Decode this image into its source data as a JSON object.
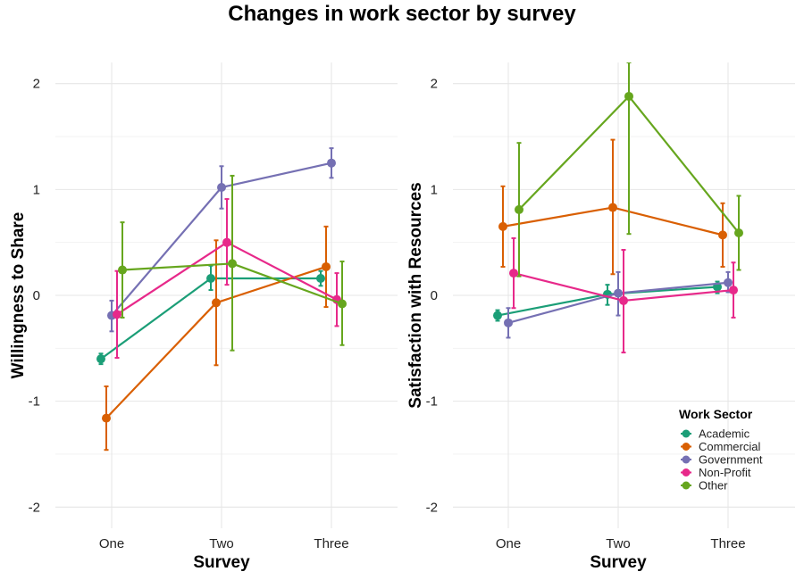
{
  "title": "Changes in work sector by survey",
  "chart_data": [
    {
      "type": "line",
      "error_bars": true,
      "categories": [
        "One",
        "Two",
        "Three"
      ],
      "xlabel": "Survey",
      "ylabel": "Willingness to Share",
      "ylim": [
        -2.2,
        2.2
      ],
      "yticks": [
        -2,
        -1,
        0,
        1,
        2
      ],
      "grid": true,
      "series": [
        {
          "name": "Academic",
          "color": "#1b9e77",
          "values": [
            -0.6,
            0.16,
            0.16
          ],
          "lower": [
            -0.65,
            0.05,
            0.09
          ],
          "upper": [
            -0.55,
            0.28,
            0.23
          ]
        },
        {
          "name": "Commercial",
          "color": "#d95f02",
          "values": [
            -1.16,
            -0.07,
            0.27
          ],
          "lower": [
            -1.46,
            -0.66,
            -0.11
          ],
          "upper": [
            -0.86,
            0.52,
            0.65
          ]
        },
        {
          "name": "Government",
          "color": "#7570b3",
          "values": [
            -0.19,
            1.02,
            1.25
          ],
          "lower": [
            -0.34,
            0.82,
            1.11
          ],
          "upper": [
            -0.05,
            1.22,
            1.39
          ]
        },
        {
          "name": "Non-Profit",
          "color": "#e7298a",
          "values": [
            -0.18,
            0.5,
            -0.04
          ],
          "lower": [
            -0.59,
            0.1,
            -0.29
          ],
          "upper": [
            0.23,
            0.91,
            0.21
          ]
        },
        {
          "name": "Other",
          "color": "#66a61e",
          "values": [
            0.24,
            0.3,
            -0.08
          ],
          "lower": [
            -0.21,
            -0.52,
            -0.47
          ],
          "upper": [
            0.69,
            1.13,
            0.32
          ]
        }
      ]
    },
    {
      "type": "line",
      "error_bars": true,
      "categories": [
        "One",
        "Two",
        "Three"
      ],
      "xlabel": "Survey",
      "ylabel": "Satisfaction with Resources",
      "ylim": [
        -2.2,
        2.2
      ],
      "yticks": [
        -2,
        -1,
        0,
        1,
        2
      ],
      "grid": true,
      "series": [
        {
          "name": "Academic",
          "color": "#1b9e77",
          "values": [
            -0.19,
            0.01,
            0.08
          ],
          "lower": [
            -0.24,
            -0.09,
            0.02
          ],
          "upper": [
            -0.14,
            0.1,
            0.13
          ]
        },
        {
          "name": "Commercial",
          "color": "#d95f02",
          "values": [
            0.65,
            0.83,
            0.57
          ],
          "lower": [
            0.27,
            0.2,
            0.27
          ],
          "upper": [
            1.03,
            1.47,
            0.87
          ]
        },
        {
          "name": "Government",
          "color": "#7570b3",
          "values": [
            -0.26,
            0.02,
            0.12
          ],
          "lower": [
            -0.4,
            -0.19,
            0.03
          ],
          "upper": [
            -0.12,
            0.22,
            0.22
          ]
        },
        {
          "name": "Non-Profit",
          "color": "#e7298a",
          "values": [
            0.21,
            -0.05,
            0.05
          ],
          "lower": [
            -0.12,
            -0.54,
            -0.21
          ],
          "upper": [
            0.54,
            0.43,
            0.31
          ]
        },
        {
          "name": "Other",
          "color": "#66a61e",
          "values": [
            0.81,
            1.88,
            0.59
          ],
          "lower": [
            0.18,
            0.58,
            0.24
          ],
          "upper": [
            1.44,
            2.2,
            0.94
          ]
        }
      ]
    }
  ],
  "legend": {
    "title": "Work Sector",
    "position": "bottom-right-inside-second-panel",
    "items": [
      {
        "label": "Academic",
        "color": "#1b9e77"
      },
      {
        "label": "Commercial",
        "color": "#d95f02"
      },
      {
        "label": "Government",
        "color": "#7570b3"
      },
      {
        "label": "Non-Profit",
        "color": "#e7298a"
      },
      {
        "label": "Other",
        "color": "#66a61e"
      }
    ]
  }
}
